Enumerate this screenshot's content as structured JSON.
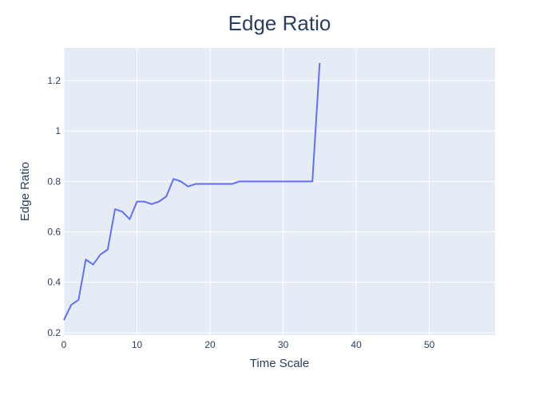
{
  "chart_data": {
    "type": "line",
    "title": "Edge Ratio",
    "xlabel": "Time Scale",
    "ylabel": "Edge Ratio",
    "xlim": [
      0,
      59
    ],
    "ylim": [
      0.19,
      1.33
    ],
    "grid": true,
    "x_ticks": [
      0,
      10,
      20,
      30,
      40,
      50
    ],
    "y_ticks": [
      0.2,
      0.4,
      0.6,
      0.8,
      1,
      1.2
    ],
    "x_tick_labels": [
      "0",
      "10",
      "20",
      "30",
      "40",
      "50"
    ],
    "y_tick_labels": [
      "0.2",
      "0.4",
      "0.6",
      "0.8",
      "1",
      "1.2"
    ],
    "series": [
      {
        "color": "#636efa",
        "x": [
          0,
          1,
          2,
          3,
          4,
          5,
          6,
          7,
          8,
          9,
          10,
          11,
          12,
          13,
          14,
          15,
          16,
          17,
          18,
          19,
          20,
          21,
          22,
          23,
          24,
          25,
          26,
          27,
          28,
          29,
          30,
          31,
          32,
          33,
          34,
          35
        ],
        "y": [
          0.25,
          0.31,
          0.33,
          0.49,
          0.47,
          0.51,
          0.53,
          0.69,
          0.68,
          0.65,
          0.72,
          0.72,
          0.71,
          0.72,
          0.74,
          0.81,
          0.8,
          0.78,
          0.79,
          0.79,
          0.79,
          0.79,
          0.79,
          0.79,
          0.8,
          0.8,
          0.8,
          0.8,
          0.8,
          0.8,
          0.8,
          0.8,
          0.8,
          0.8,
          0.8,
          1.27
        ]
      }
    ]
  },
  "colors": {
    "plot_background": "#e5ecf6",
    "grid": "#ffffff",
    "text": "#2a3f5f",
    "line": "#636efa"
  }
}
